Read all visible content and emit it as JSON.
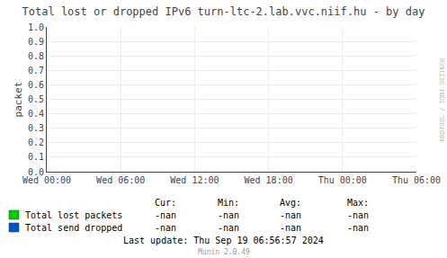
{
  "chart_data": {
    "type": "line",
    "title": "Total lost or dropped IPv6 turn-ltc-2.lab.vvc.niif.hu - by day",
    "y_label": "packet",
    "x": [],
    "xlim": [
      0,
      30
    ],
    "xticks": [
      {
        "value": 0,
        "label": "Wed 00:00"
      },
      {
        "value": 6,
        "label": "Wed 06:00"
      },
      {
        "value": 12,
        "label": "Wed 12:00"
      },
      {
        "value": 18,
        "label": "Wed 18:00"
      },
      {
        "value": 24,
        "label": "Thu 00:00"
      },
      {
        "value": 30,
        "label": "Thu 06:00"
      }
    ],
    "ylim": [
      0.0,
      1.0
    ],
    "yticks": [
      {
        "value": 0.0,
        "label": "0.0"
      },
      {
        "value": 0.1,
        "label": "0.1"
      },
      {
        "value": 0.2,
        "label": "0.2"
      },
      {
        "value": 0.3,
        "label": "0.3"
      },
      {
        "value": 0.4,
        "label": "0.4"
      },
      {
        "value": 0.5,
        "label": "0.5"
      },
      {
        "value": 0.6,
        "label": "0.6"
      },
      {
        "value": 0.7,
        "label": "0.7"
      },
      {
        "value": 0.8,
        "label": "0.8"
      },
      {
        "value": 0.9,
        "label": "0.9"
      },
      {
        "value": 1.0,
        "label": "1.0"
      }
    ],
    "grid": true,
    "series": [
      {
        "name": "Total lost packets",
        "color": "#00cc00",
        "values": [],
        "stats": [
          "-nan",
          "-nan",
          "-nan",
          "-nan"
        ]
      },
      {
        "name": "Total send dropped",
        "color": "#0055cc",
        "values": [],
        "stats": [
          "-nan",
          "-nan",
          "-nan",
          "-nan"
        ]
      }
    ],
    "stats_header": [
      "Cur:",
      "Min:",
      "Avg:",
      "Max:"
    ],
    "annotations": [
      "Last update: Thu Sep 19 06:56:57 2024",
      "Munin 2.0.49",
      "RRDTOOL / TOBI OETIKER"
    ]
  }
}
